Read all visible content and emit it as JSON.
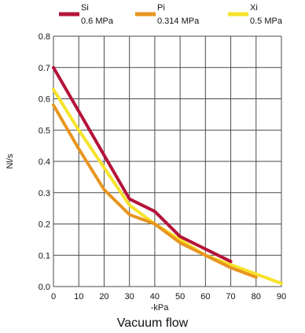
{
  "caption": "Vacuum flow",
  "chart_data": {
    "type": "line",
    "title": "",
    "xlabel": "-kPa",
    "ylabel": "Nl/s",
    "xlim": [
      0,
      90
    ],
    "ylim": [
      0.0,
      0.8
    ],
    "x_ticks": [
      0,
      10,
      20,
      30,
      40,
      50,
      60,
      70,
      80,
      90
    ],
    "x_tick_labels": [
      "0",
      "10",
      "20",
      "30",
      "40",
      "50",
      "60",
      "70",
      "80",
      "90"
    ],
    "y_ticks": [
      0.0,
      0.1,
      0.2,
      0.3,
      0.4,
      0.5,
      0.6,
      0.7,
      0.8
    ],
    "y_tick_labels": [
      "0.0",
      "0.1",
      "0.2",
      "0.3",
      "0.4",
      "0.5",
      "0.6",
      "0.7",
      "0.8"
    ],
    "grid": true,
    "legend_position": "top",
    "series": [
      {
        "name": "Si",
        "sublabel": "0.6 MPa",
        "color": "#b5133a",
        "x": [
          0,
          10,
          20,
          30,
          40,
          50,
          60,
          70
        ],
        "y": [
          0.7,
          0.56,
          0.42,
          0.28,
          0.24,
          0.16,
          0.12,
          0.08
        ]
      },
      {
        "name": "Pi",
        "sublabel": "0.314 MPa",
        "color": "#e8951f",
        "x": [
          0,
          10,
          20,
          30,
          40,
          50,
          60,
          70,
          80
        ],
        "y": [
          0.58,
          0.44,
          0.31,
          0.23,
          0.2,
          0.14,
          0.1,
          0.06,
          0.03
        ]
      },
      {
        "name": "Xi",
        "sublabel": "0.5 MPa",
        "color": "#f7e22a",
        "x": [
          0,
          10,
          20,
          30,
          40,
          50,
          60,
          70,
          80,
          90
        ],
        "y": [
          0.63,
          0.5,
          0.38,
          0.26,
          0.2,
          0.15,
          0.1,
          0.07,
          0.04,
          0.01
        ]
      }
    ]
  }
}
